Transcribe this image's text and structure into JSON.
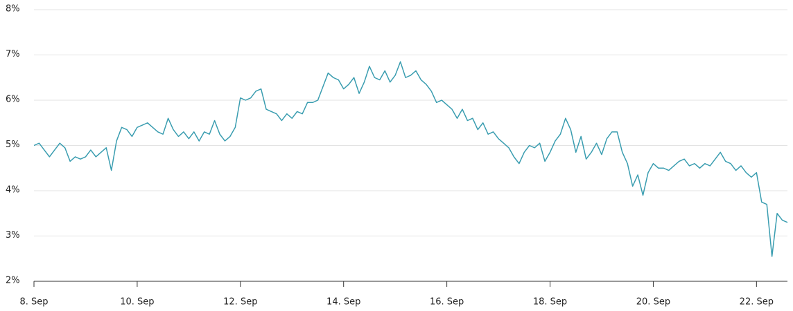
{
  "chart_data": {
    "type": "line",
    "color": "#3a9db0",
    "grid": true,
    "xlim": [
      8,
      22.6
    ],
    "ylim": [
      2,
      8
    ],
    "xticks": [
      {
        "value": 8,
        "label": "8. Sep"
      },
      {
        "value": 10,
        "label": "10. Sep"
      },
      {
        "value": 12,
        "label": "12. Sep"
      },
      {
        "value": 14,
        "label": "14. Sep"
      },
      {
        "value": 16,
        "label": "16. Sep"
      },
      {
        "value": 18,
        "label": "18. Sep"
      },
      {
        "value": 20,
        "label": "20. Sep"
      },
      {
        "value": 22,
        "label": "22. Sep"
      }
    ],
    "yticks": [
      {
        "value": 2,
        "label": "2%"
      },
      {
        "value": 3,
        "label": "3%"
      },
      {
        "value": 4,
        "label": "4%"
      },
      {
        "value": 5,
        "label": "5%"
      },
      {
        "value": 6,
        "label": "6%"
      },
      {
        "value": 7,
        "label": "7%"
      },
      {
        "value": 8,
        "label": "8%"
      }
    ],
    "x": [
      8.0,
      8.1,
      8.2,
      8.3,
      8.4,
      8.5,
      8.6,
      8.7,
      8.8,
      8.9,
      9.0,
      9.1,
      9.2,
      9.3,
      9.4,
      9.5,
      9.6,
      9.7,
      9.8,
      9.9,
      10.0,
      10.1,
      10.2,
      10.3,
      10.4,
      10.5,
      10.6,
      10.7,
      10.8,
      10.9,
      11.0,
      11.1,
      11.2,
      11.3,
      11.4,
      11.5,
      11.6,
      11.7,
      11.8,
      11.9,
      12.0,
      12.1,
      12.2,
      12.3,
      12.4,
      12.5,
      12.6,
      12.7,
      12.8,
      12.9,
      13.0,
      13.1,
      13.2,
      13.3,
      13.4,
      13.5,
      13.6,
      13.7,
      13.8,
      13.9,
      14.0,
      14.1,
      14.2,
      14.3,
      14.4,
      14.5,
      14.6,
      14.7,
      14.8,
      14.9,
      15.0,
      15.1,
      15.2,
      15.3,
      15.4,
      15.5,
      15.6,
      15.7,
      15.8,
      15.9,
      16.0,
      16.1,
      16.2,
      16.3,
      16.4,
      16.5,
      16.6,
      16.7,
      16.8,
      16.9,
      17.0,
      17.1,
      17.2,
      17.3,
      17.4,
      17.5,
      17.6,
      17.7,
      17.8,
      17.9,
      18.0,
      18.1,
      18.2,
      18.3,
      18.4,
      18.5,
      18.6,
      18.7,
      18.8,
      18.9,
      19.0,
      19.1,
      19.2,
      19.3,
      19.4,
      19.5,
      19.6,
      19.7,
      19.8,
      19.9,
      20.0,
      20.1,
      20.2,
      20.3,
      20.4,
      20.5,
      20.6,
      20.7,
      20.8,
      20.9,
      21.0,
      21.1,
      21.2,
      21.3,
      21.4,
      21.5,
      21.6,
      21.7,
      21.8,
      21.9,
      22.0,
      22.1,
      22.2,
      22.3,
      22.4,
      22.5,
      22.6
    ],
    "values": [
      5.0,
      5.05,
      4.9,
      4.75,
      4.9,
      5.05,
      4.95,
      4.65,
      4.75,
      4.7,
      4.75,
      4.9,
      4.75,
      4.85,
      4.95,
      4.45,
      5.1,
      5.4,
      5.35,
      5.2,
      5.4,
      5.45,
      5.5,
      5.4,
      5.3,
      5.25,
      5.6,
      5.35,
      5.2,
      5.3,
      5.15,
      5.3,
      5.1,
      5.3,
      5.25,
      5.55,
      5.25,
      5.1,
      5.2,
      5.4,
      6.05,
      6.0,
      6.05,
      6.2,
      6.25,
      5.8,
      5.75,
      5.7,
      5.55,
      5.7,
      5.6,
      5.75,
      5.7,
      5.95,
      5.95,
      6.0,
      6.3,
      6.6,
      6.5,
      6.45,
      6.25,
      6.35,
      6.5,
      6.15,
      6.4,
      6.75,
      6.5,
      6.45,
      6.65,
      6.4,
      6.55,
      6.85,
      6.5,
      6.55,
      6.65,
      6.45,
      6.35,
      6.2,
      5.95,
      6.0,
      5.9,
      5.8,
      5.6,
      5.8,
      5.55,
      5.6,
      5.35,
      5.5,
      5.25,
      5.3,
      5.15,
      5.05,
      4.95,
      4.75,
      4.6,
      4.85,
      5.0,
      4.95,
      5.05,
      4.65,
      4.85,
      5.1,
      5.25,
      5.6,
      5.35,
      4.85,
      5.2,
      4.7,
      4.85,
      5.05,
      4.8,
      5.15,
      5.3,
      5.3,
      4.85,
      4.6,
      4.1,
      4.35,
      3.9,
      4.4,
      4.6,
      4.5,
      4.5,
      4.45,
      4.55,
      4.65,
      4.7,
      4.55,
      4.6,
      4.5,
      4.6,
      4.55,
      4.7,
      4.85,
      4.65,
      4.6,
      4.45,
      4.55,
      4.4,
      4.3,
      4.4,
      3.75,
      3.7,
      2.55,
      3.5,
      3.35,
      3.3
    ]
  }
}
